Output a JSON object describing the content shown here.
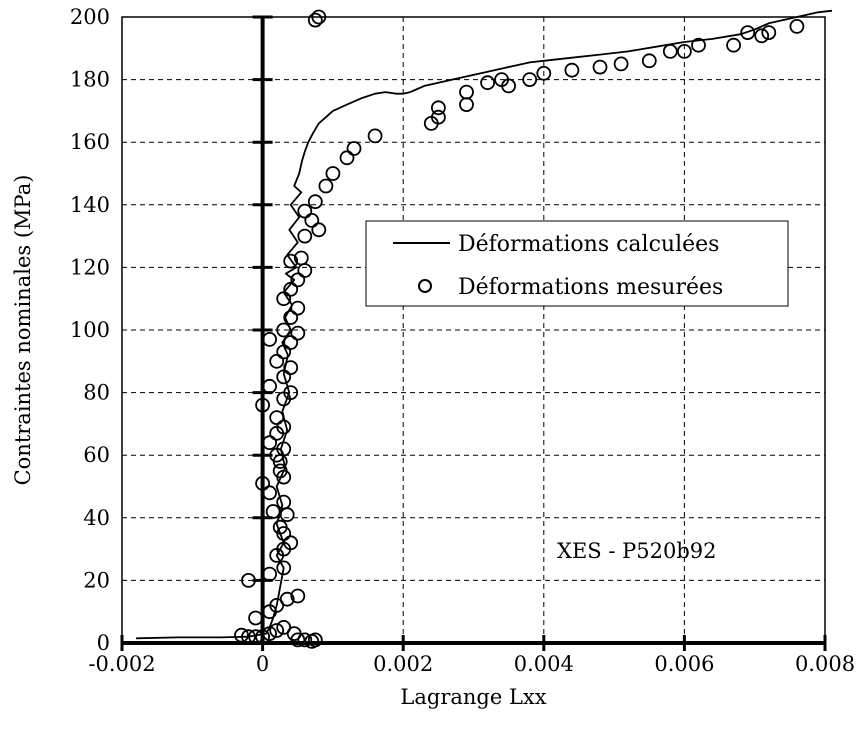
{
  "chart_data": {
    "type": "scatter",
    "title": "",
    "xlabel": "Lagrange Lxx",
    "ylabel": "Contraintes nominales (MPa)",
    "xlim": [
      -0.002,
      0.008
    ],
    "ylim": [
      0,
      200
    ],
    "xticks": [
      -0.002,
      0,
      0.002,
      0.004,
      0.006,
      0.008
    ],
    "xtick_labels": [
      "-0.002",
      "0",
      "0.002",
      "0.004",
      "0.006",
      "0.008"
    ],
    "yticks": [
      0,
      20,
      40,
      60,
      80,
      100,
      120,
      140,
      160,
      180,
      200
    ],
    "ytick_labels": [
      "0",
      "20",
      "40",
      "60",
      "80",
      "100",
      "120",
      "140",
      "160",
      "180",
      "200"
    ],
    "grid": true,
    "legend_position": "center-right",
    "annotation": "XES - P520b92",
    "series": [
      {
        "name": "Déformations calculées",
        "kind": "line",
        "color": "#000000",
        "x": [
          -0.0018,
          -0.0012,
          -0.0006,
          -0.0002,
          5e-05,
          0.0001,
          0.00015,
          0.0002,
          0.00025,
          0.0003,
          0.0002,
          0.0003,
          0.0002,
          0.00028,
          0.0002,
          0.00032,
          0.00026,
          0.00035,
          0.00028,
          0.00038,
          0.0003,
          0.00036,
          0.00028,
          0.0004,
          0.00032,
          0.00042,
          0.0003,
          0.00045,
          0.00033,
          0.00048,
          0.00035,
          0.0005,
          0.00038,
          0.00052,
          0.0004,
          0.00055,
          0.00045,
          0.00052,
          0.00056,
          0.0006,
          0.00065,
          0.00072,
          0.0008,
          0.0009,
          0.001,
          0.0012,
          0.0014,
          0.0016,
          0.00175,
          0.0019,
          0.002,
          0.0021,
          0.0022,
          0.0023,
          0.0025,
          0.0028,
          0.003,
          0.0032,
          0.0034,
          0.0036,
          0.0038,
          0.004,
          0.0044,
          0.0048,
          0.0052,
          0.0056,
          0.006,
          0.0064,
          0.0068,
          0.007,
          0.0072,
          0.0076,
          0.0079,
          0.0081
        ],
        "y": [
          1.5,
          1.8,
          1.8,
          2,
          3,
          5,
          8,
          12,
          18,
          24,
          28,
          32,
          38,
          44,
          50,
          56,
          62,
          68,
          74,
          80,
          86,
          92,
          96,
          100,
          104,
          108,
          112,
          116,
          118,
          120,
          124,
          128,
          132,
          136,
          140,
          144,
          146,
          150,
          154,
          157,
          160,
          163,
          166,
          168,
          170,
          172,
          174,
          175.5,
          176,
          175.5,
          175.5,
          176,
          177,
          178,
          179,
          180.5,
          181.5,
          182.5,
          183.5,
          184.5,
          185.5,
          186,
          187,
          188,
          189,
          190.5,
          192,
          193,
          194.5,
          196,
          198,
          200,
          201.5,
          202
        ]
      },
      {
        "name": "Déformations mesurées",
        "kind": "markers",
        "color": "#000000",
        "x": [
          -0.0003,
          -0.0002,
          -0.0001,
          0.0,
          0.0001,
          0.0002,
          0.0003,
          0.00045,
          0.0005,
          0.0006,
          0.0007,
          0.00075,
          -0.0001,
          0.0001,
          0.0002,
          0.00035,
          0.0005,
          -0.0002,
          0.0001,
          0.0003,
          0.0002,
          0.0003,
          0.0004,
          0.0003,
          0.00025,
          0.00015,
          0.0003,
          0.00035,
          0.0,
          0.0001,
          0.00025,
          0.0003,
          0.0002,
          0.00025,
          0.0003,
          0.0001,
          0.0002,
          0.0003,
          0.0,
          0.0002,
          0.0003,
          0.0004,
          0.0001,
          0.0003,
          0.0004,
          0.0002,
          0.0003,
          0.0004,
          0.0001,
          0.0003,
          0.0005,
          0.0004,
          0.0005,
          0.0003,
          0.0004,
          0.0005,
          0.0006,
          0.0004,
          0.00055,
          0.0006,
          0.0007,
          0.0008,
          0.0006,
          0.00075,
          0.0009,
          0.001,
          0.0012,
          0.0013,
          0.0016,
          0.0024,
          0.0025,
          0.0025,
          0.0029,
          0.0029,
          0.0032,
          0.0034,
          0.0035,
          0.0038,
          0.004,
          0.0044,
          0.0048,
          0.0051,
          0.0055,
          0.0058,
          0.006,
          0.0062,
          0.0067,
          0.0071,
          0.0072,
          0.0069,
          0.0076,
          0.00075,
          0.0008
        ],
        "y": [
          2.5,
          2,
          2,
          2,
          3,
          4,
          5,
          3,
          1,
          1,
          0.5,
          1,
          8,
          10,
          12,
          14,
          15,
          20,
          22,
          24,
          28,
          30,
          32,
          35,
          37,
          42,
          45,
          41,
          51,
          48,
          55,
          53,
          60,
          58,
          62,
          64,
          67,
          69,
          76,
          72,
          78,
          80,
          82,
          85,
          88,
          90,
          93,
          96,
          97,
          100,
          99,
          104,
          107,
          110,
          113,
          116,
          119,
          122,
          123,
          130,
          135,
          132,
          138,
          141,
          146,
          150,
          155,
          158,
          162,
          166,
          168,
          171,
          172,
          176,
          179,
          180,
          178,
          180,
          182,
          183,
          184,
          185,
          186,
          189,
          189,
          191,
          191,
          194,
          195,
          195,
          197,
          199,
          200
        ]
      }
    ]
  }
}
